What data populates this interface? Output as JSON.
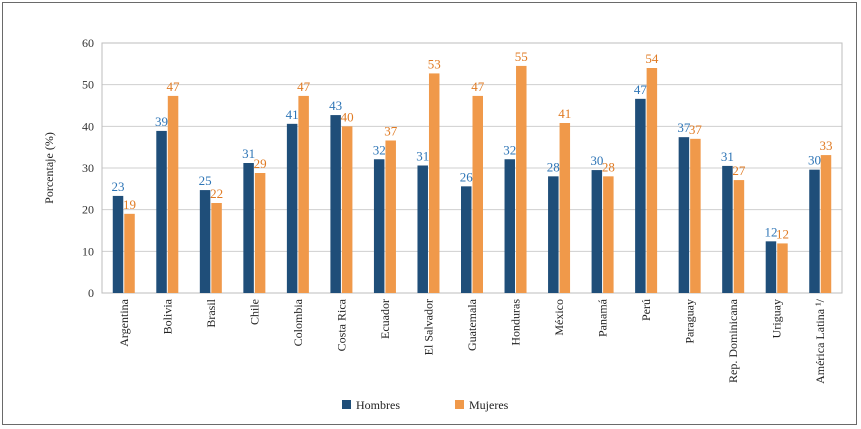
{
  "chart_data": {
    "type": "bar",
    "ylabel": "Porcentaje (%)",
    "ylim": [
      0,
      60
    ],
    "yticks": [
      0,
      10,
      20,
      30,
      40,
      50,
      60
    ],
    "grid": true,
    "legend_position": "bottom",
    "categories": [
      "Argentina",
      "Bolivia",
      "Brasil",
      "Chile",
      "Colombia",
      "Costa Rica",
      "Ecuador",
      "El Salvador",
      "Guatemala",
      "Honduras",
      "México",
      "Panamá",
      "Perú",
      "Paraguay",
      "Rep. Dominicana",
      "Uriguay",
      "América Latina ¹/"
    ],
    "series": [
      {
        "name": "Hombres",
        "color": "#1f4e79",
        "label_color": "#2e75b6",
        "values": [
          23.3,
          38.9,
          24.7,
          31.2,
          40.6,
          42.7,
          32.1,
          30.6,
          25.6,
          32.1,
          28.0,
          29.5,
          46.6,
          37.4,
          30.5,
          12.4,
          29.6
        ],
        "labels": [
          "23",
          "39",
          "25",
          "31",
          "41",
          "43",
          "32",
          "31",
          "26",
          "32",
          "28",
          "30",
          "47",
          "37",
          "31",
          "12",
          "30"
        ]
      },
      {
        "name": "Mujeres",
        "color": "#f0994a",
        "label_color": "#e07b24",
        "values": [
          19.0,
          47.3,
          21.6,
          28.8,
          47.3,
          40.0,
          36.6,
          52.7,
          47.3,
          54.5,
          40.8,
          28.0,
          54.0,
          37.0,
          27.1,
          11.9,
          33.1
        ],
        "labels": [
          "19",
          "47",
          "22",
          "29",
          "47",
          "40",
          "37",
          "53",
          "47",
          "55",
          "41",
          "28",
          "54",
          "37",
          "27",
          "12",
          "33"
        ]
      }
    ]
  }
}
